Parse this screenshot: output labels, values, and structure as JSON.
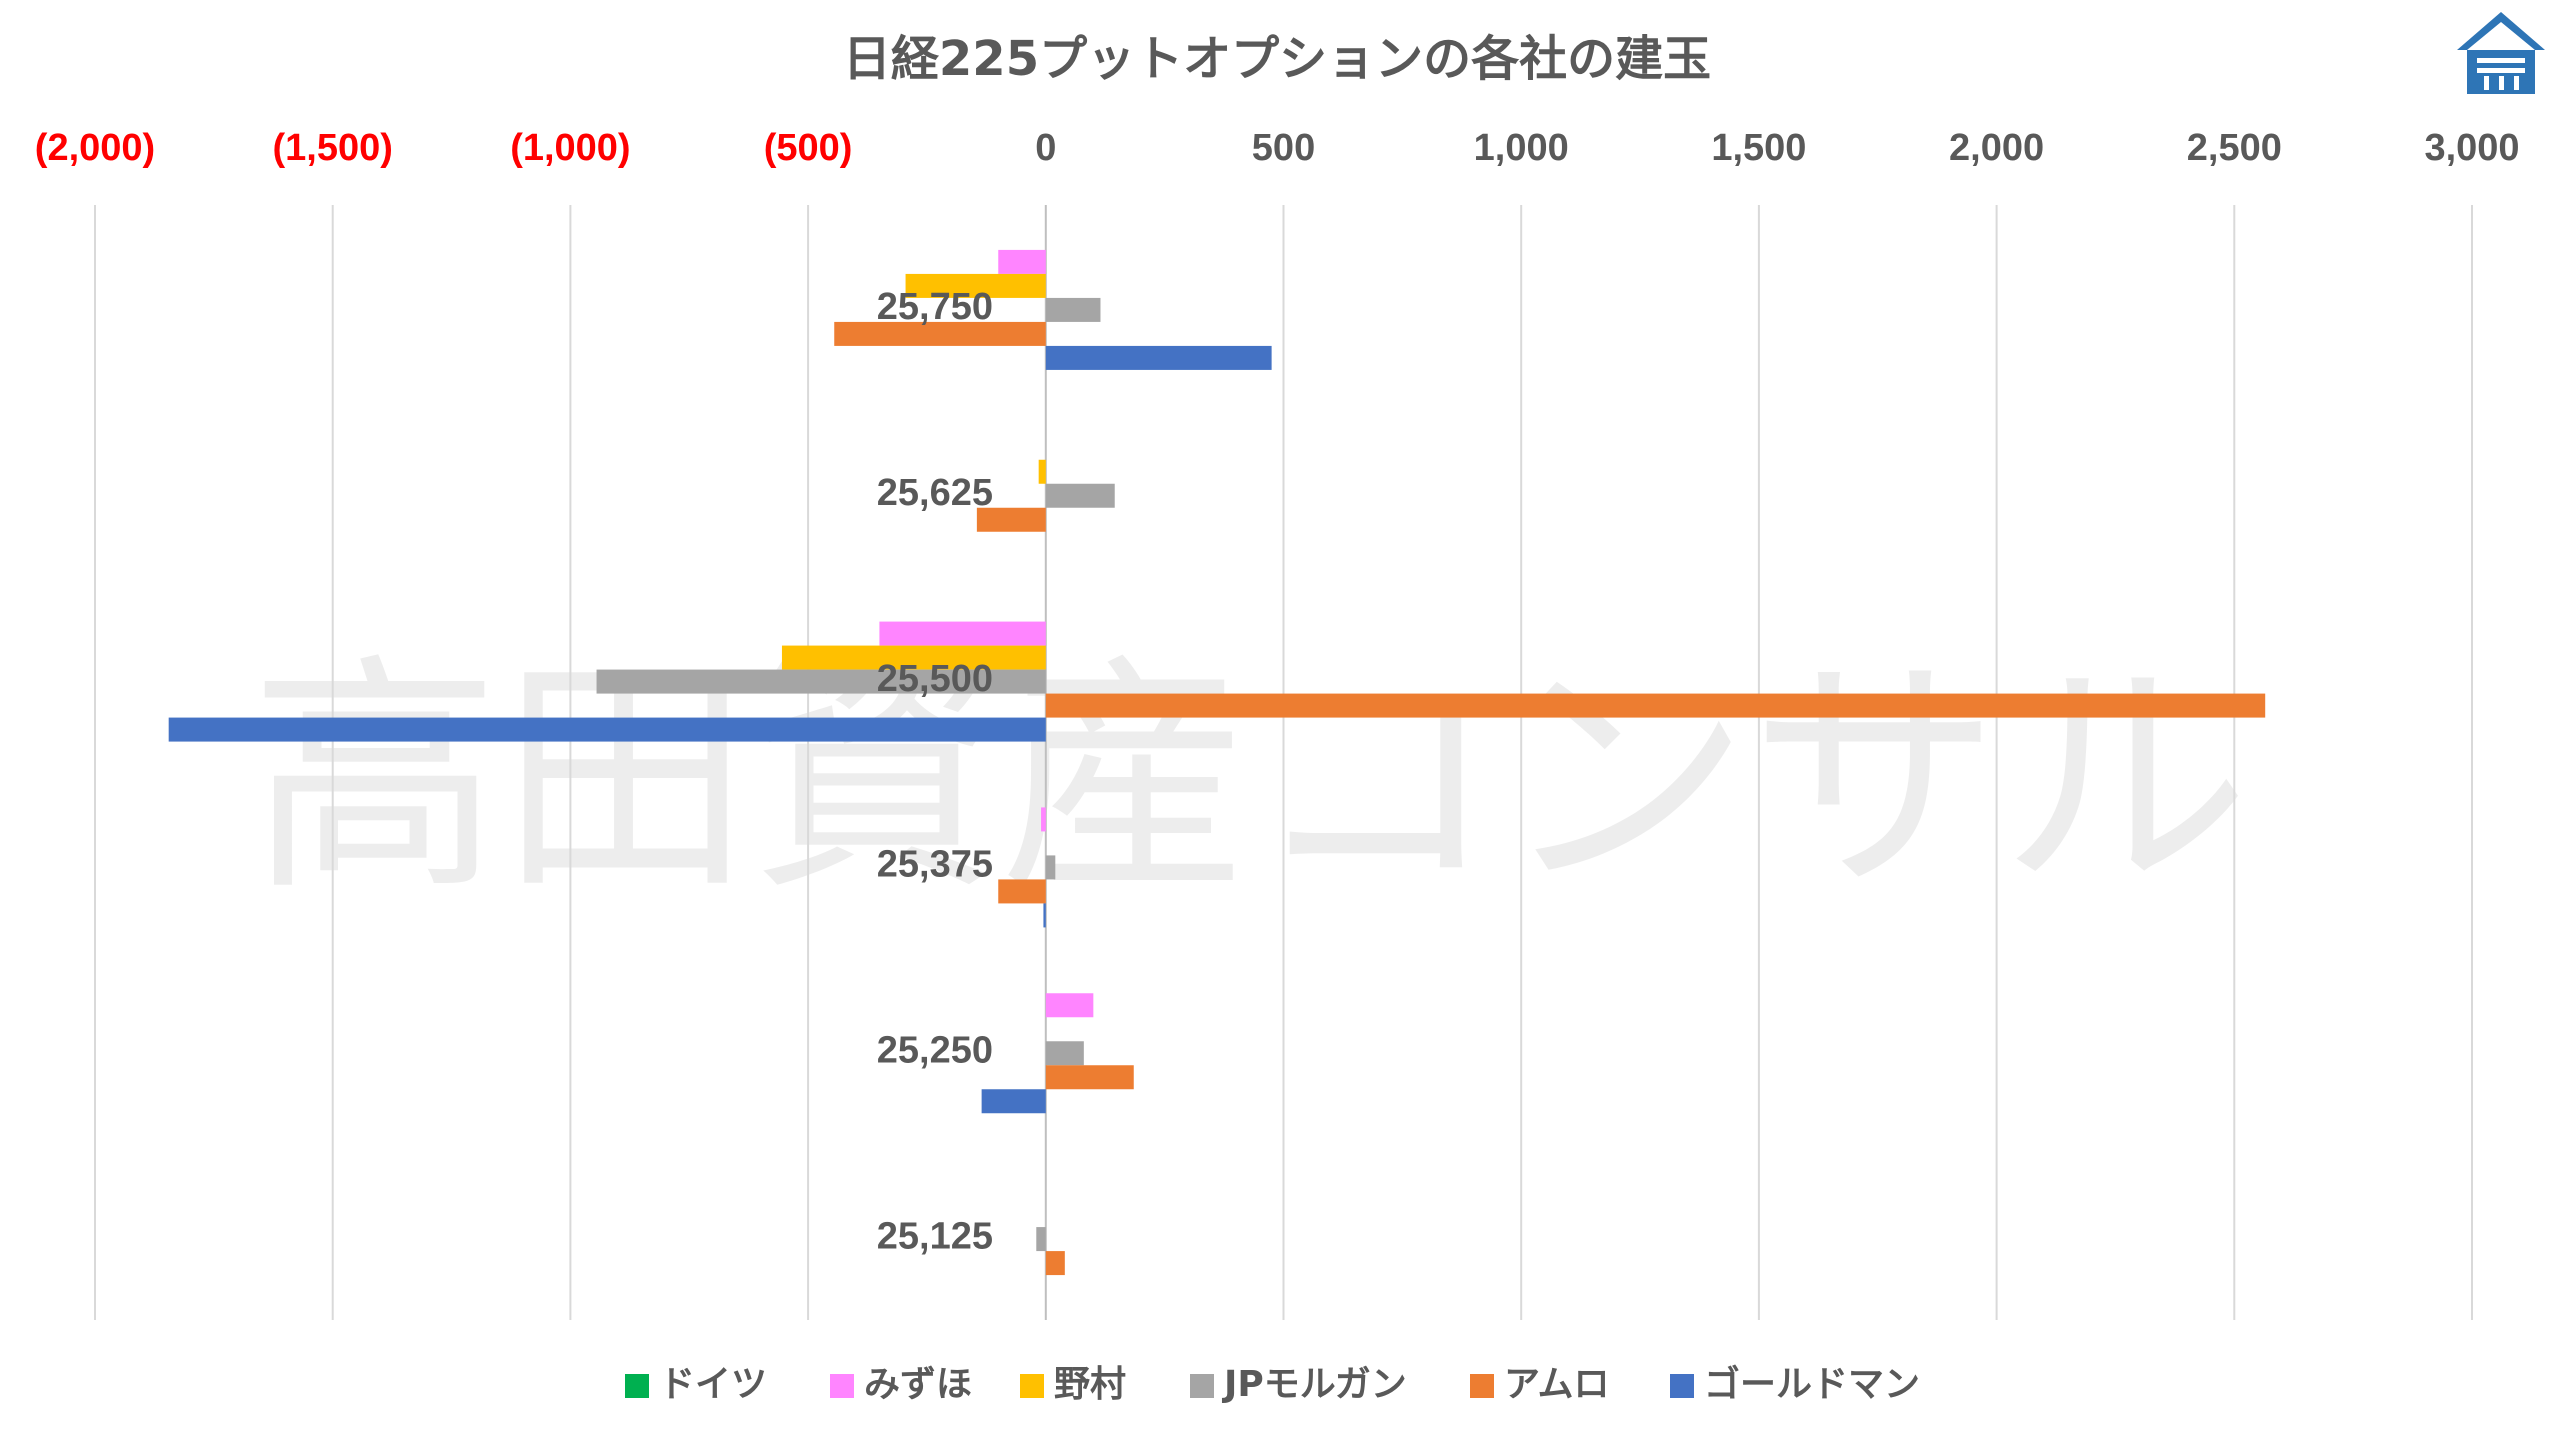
{
  "chart_data": {
    "type": "bar",
    "orientation": "horizontal",
    "title": "日経225プットオプションの各社の建玉",
    "categories": [
      "25,750",
      "25,625",
      "25,500",
      "25,375",
      "25,250",
      "25,125"
    ],
    "series": [
      {
        "name": "ドイツ",
        "color": "#00B050",
        "values": [
          0,
          0,
          0,
          0,
          0,
          0
        ]
      },
      {
        "name": "みずほ",
        "color": "#FF85FF",
        "values": [
          -100,
          0,
          -350,
          -10,
          100,
          0
        ]
      },
      {
        "name": "野村",
        "color": "#FFC000",
        "values": [
          -295,
          -15,
          -555,
          0,
          0,
          0
        ]
      },
      {
        "name": "JPモルガン",
        "color": "#A5A5A5",
        "values": [
          115,
          145,
          -945,
          20,
          80,
          -20
        ]
      },
      {
        "name": "アムロ",
        "color": "#ED7D31",
        "values": [
          -445,
          -145,
          2565,
          -100,
          185,
          40
        ]
      },
      {
        "name": "ゴールドマン",
        "color": "#4472C4",
        "values": [
          475,
          0,
          -1845,
          -5,
          -135,
          0
        ]
      }
    ],
    "xlim": [
      -2000,
      3000
    ],
    "x_ticks": [
      -2000,
      -1500,
      -1000,
      -500,
      0,
      500,
      1000,
      1500,
      2000,
      2500,
      3000
    ],
    "x_tick_labels": [
      "(2,000)",
      "(1,500)",
      "(1,000)",
      "(500)",
      "0",
      "500",
      "1,000",
      "1,500",
      "2,000",
      "2,500",
      "3,000"
    ],
    "negative_tick_color": "#FF0000",
    "positive_tick_color": "#595959",
    "axis_position": "top",
    "grid": true,
    "legend_position": "bottom",
    "watermark": "高田資産コンサル"
  }
}
